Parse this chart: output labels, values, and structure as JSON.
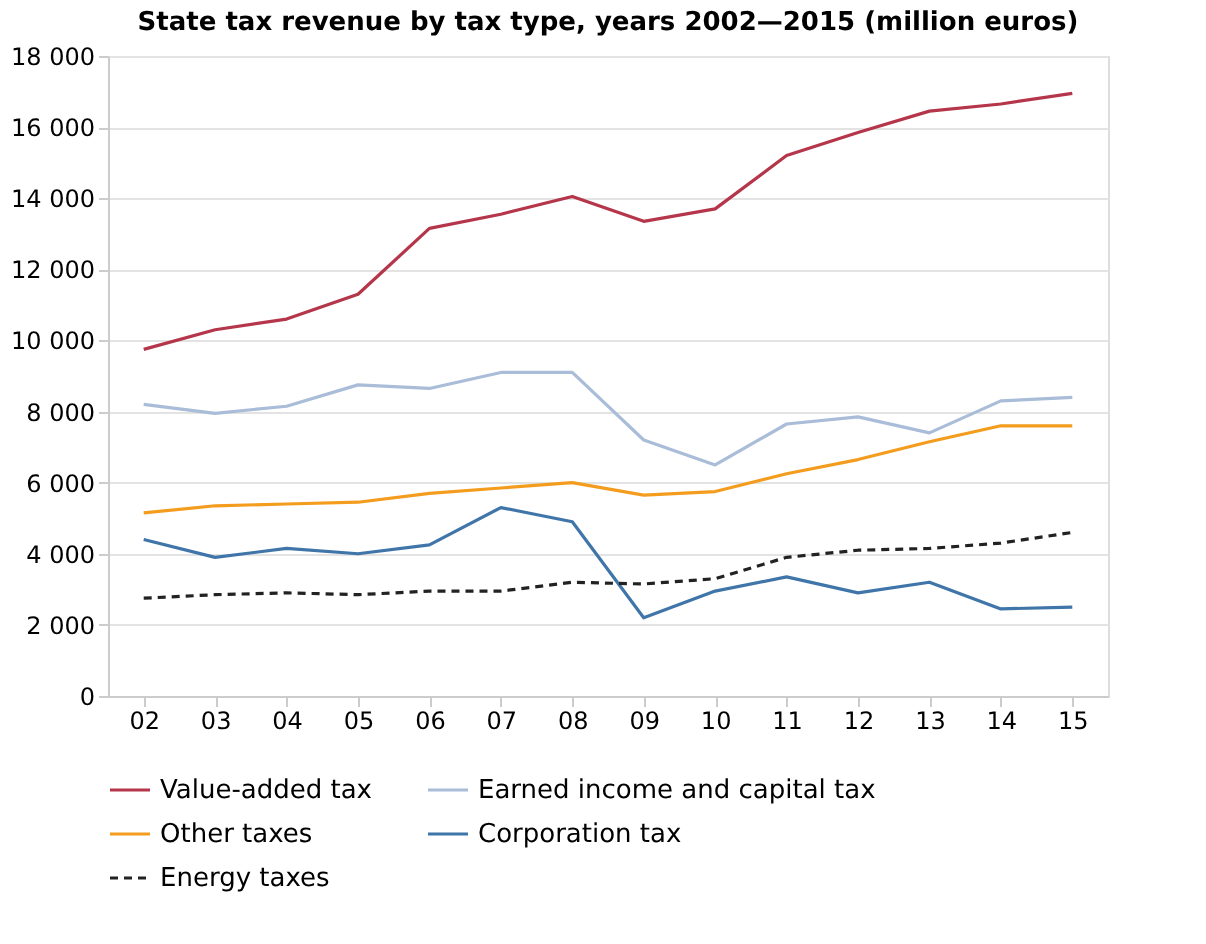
{
  "chart_data": {
    "type": "line",
    "title": "State tax revenue by tax type, years 2002—2015 (million euros)",
    "categories": [
      "02",
      "03",
      "04",
      "05",
      "06",
      "07",
      "08",
      "09",
      "10",
      "11",
      "12",
      "13",
      "14",
      "15"
    ],
    "series": [
      {
        "name": "Value-added tax",
        "color": "#b5364a",
        "line_style": "solid",
        "values": [
          9750,
          10300,
          10600,
          11300,
          13150,
          13550,
          14050,
          13350,
          13700,
          15200,
          15850,
          16450,
          16650,
          16950
        ]
      },
      {
        "name": "Earned income and capital tax",
        "color": "#a9bcd8",
        "line_style": "solid",
        "values": [
          8200,
          7950,
          8150,
          8750,
          8650,
          9100,
          9100,
          7200,
          6500,
          7650,
          7850,
          7400,
          8300,
          8400
        ]
      },
      {
        "name": "Other taxes",
        "color": "#f39c1e",
        "line_style": "solid",
        "values": [
          5150,
          5350,
          5400,
          5450,
          5700,
          5850,
          6000,
          5650,
          5750,
          6250,
          6650,
          7150,
          7600,
          7600
        ]
      },
      {
        "name": "Corporation tax",
        "color": "#3f75a8",
        "line_style": "solid",
        "values": [
          4400,
          3900,
          4150,
          4000,
          4250,
          5300,
          4900,
          2200,
          2950,
          3350,
          2900,
          3200,
          2450,
          2500
        ]
      },
      {
        "name": "Energy taxes",
        "color": "#222222",
        "line_style": "dashed",
        "values": [
          2750,
          2850,
          2900,
          2850,
          2950,
          2950,
          3200,
          3150,
          3300,
          3900,
          4100,
          4150,
          4300,
          4600
        ]
      }
    ],
    "ylim": [
      0,
      18000
    ],
    "yticks": [
      0,
      2000,
      4000,
      6000,
      8000,
      10000,
      12000,
      14000,
      16000,
      18000
    ],
    "grid": "y",
    "legend": "bottom",
    "marker": "none"
  }
}
